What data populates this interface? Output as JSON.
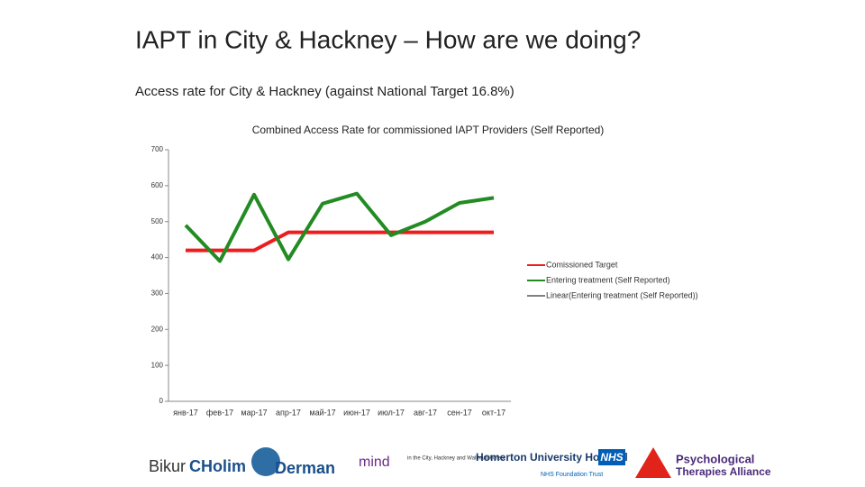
{
  "header": {
    "title": "IAPT in City & Hackney – How are we doing?",
    "subtitle": "Access rate for City & Hackney (against National Target 16.8%)"
  },
  "chart_data": {
    "type": "line",
    "title": "Combined Access Rate for commissioned IAPT Providers (Self Reported)",
    "categories": [
      "янв-17",
      "фев-17",
      "мар-17",
      "апр-17",
      "май-17",
      "июн-17",
      "июл-17",
      "авг-17",
      "сен-17",
      "окт-17"
    ],
    "series": [
      {
        "name": "Comissioned Target",
        "color": "#ee1c1c",
        "values": [
          420,
          420,
          420,
          470,
          470,
          470,
          470,
          470,
          470,
          470
        ]
      },
      {
        "name": "Entering treatment (Self Reported)",
        "color": "#228b22",
        "values": [
          490,
          390,
          575,
          395,
          550,
          578,
          462,
          500,
          552,
          566
        ]
      },
      {
        "name": "Linear(Entering treatment (Self Reported))",
        "color": "#000000",
        "values": [
          null,
          null,
          null,
          null,
          null,
          null,
          null,
          null,
          null,
          null
        ]
      }
    ],
    "ylim": [
      0,
      700
    ],
    "yticks": [
      0,
      100,
      200,
      300,
      400,
      500,
      600,
      700
    ],
    "legend": "right"
  },
  "logos": [
    "Bikur",
    "CHolim",
    "Derman",
    "mind",
    "in the City, Hackney and Waltham Forest",
    "Homerton University Hospital",
    "NHS",
    "NHS Foundation Trust",
    "Psychological",
    "Therapies Alliance"
  ]
}
